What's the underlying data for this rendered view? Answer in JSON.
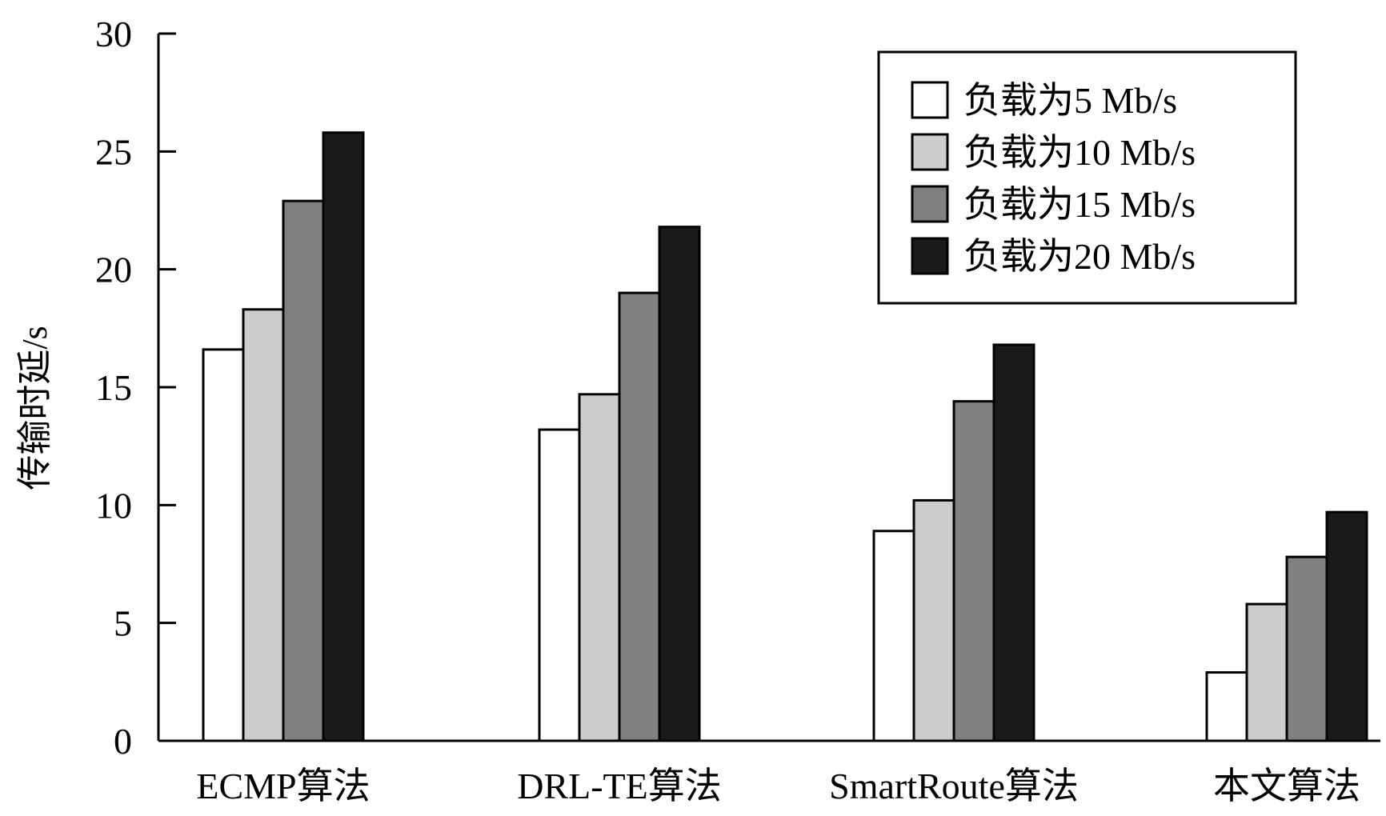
{
  "chart_data": {
    "type": "bar",
    "title": "",
    "xlabel": "",
    "ylabel": "传输时延/s",
    "ylim": [
      0,
      30
    ],
    "yticks": [
      0,
      5,
      10,
      15,
      20,
      25,
      30
    ],
    "grid": false,
    "legend_position": "top-right",
    "categories": [
      "ECMP算法",
      "DRL-TE算法",
      "SmartRoute算法",
      "本文算法"
    ],
    "series": [
      {
        "name": "负载为5 Mb/s",
        "color": "#ffffff",
        "values": [
          16.6,
          13.2,
          8.9,
          2.9
        ]
      },
      {
        "name": "负载为10 Mb/s",
        "color": "#cccccc",
        "values": [
          18.3,
          14.7,
          10.2,
          5.8
        ]
      },
      {
        "name": "负载为15 Mb/s",
        "color": "#808080",
        "values": [
          22.9,
          19.0,
          14.4,
          7.8
        ]
      },
      {
        "name": "负载为20 Mb/s",
        "color": "#1a1a1a",
        "values": [
          25.8,
          21.8,
          16.8,
          9.7
        ]
      }
    ]
  }
}
